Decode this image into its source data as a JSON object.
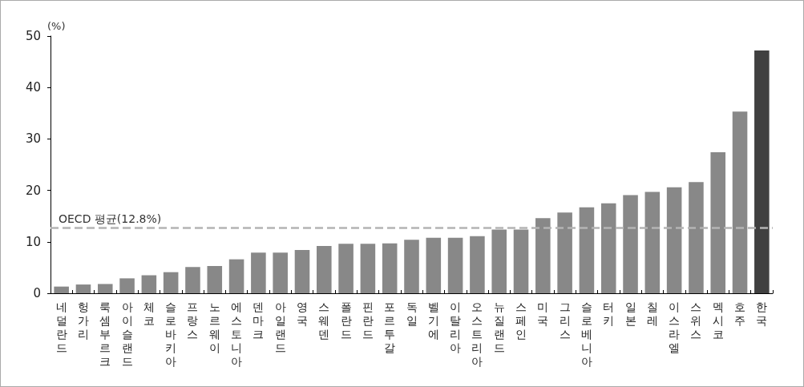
{
  "chart_data": {
    "type": "bar",
    "ylabel": "(%)",
    "categories": [
      "네덜란드",
      "헝가리",
      "룩셈부르크",
      "아이슬랜드",
      "체코",
      "슬로바키아",
      "프랑스",
      "노르웨이",
      "에스토니아",
      "덴마크",
      "아일랜드",
      "영국",
      "스웨덴",
      "폴란드",
      "핀란드",
      "포르투갈",
      "독일",
      "벨기에",
      "이탈리아",
      "오스트리아",
      "뉴질랜드",
      "스페인",
      "미국",
      "그리스",
      "슬로베니아",
      "터키",
      "일본",
      "칠레",
      "이스라엘",
      "스위스",
      "멕시코",
      "호주",
      "한국"
    ],
    "values": [
      1.3,
      1.7,
      1.8,
      2.9,
      3.5,
      4.1,
      5.1,
      5.3,
      6.6,
      7.9,
      7.9,
      8.4,
      9.2,
      9.6,
      9.6,
      9.7,
      10.4,
      10.8,
      10.8,
      11.1,
      12.4,
      12.4,
      14.6,
      15.7,
      16.7,
      17.5,
      19.1,
      19.7,
      20.6,
      21.6,
      27.4,
      35.3,
      47.2
    ],
    "colors": [
      "#888888",
      "#888888",
      "#888888",
      "#888888",
      "#888888",
      "#888888",
      "#888888",
      "#888888",
      "#888888",
      "#888888",
      "#888888",
      "#888888",
      "#888888",
      "#888888",
      "#888888",
      "#888888",
      "#888888",
      "#888888",
      "#888888",
      "#888888",
      "#888888",
      "#888888",
      "#888888",
      "#888888",
      "#888888",
      "#888888",
      "#888888",
      "#888888",
      "#888888",
      "#888888",
      "#888888",
      "#888888",
      "#404040"
    ],
    "ylim": [
      0,
      50
    ],
    "yticks": [
      0,
      10,
      20,
      30,
      40,
      50
    ],
    "grid": false,
    "ref_lines": [
      {
        "axis": "y",
        "value": 12.8,
        "label": "OECD 평균(12.8%)",
        "color": "#b4b4b4",
        "line_style": "dashed"
      }
    ]
  }
}
